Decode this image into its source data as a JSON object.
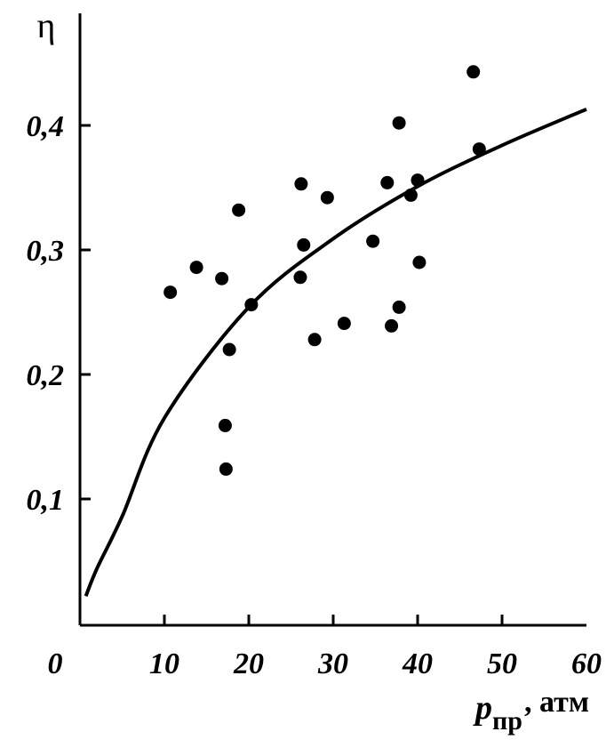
{
  "chart_data": {
    "type": "scatter",
    "y_label": "η",
    "x_label": "p",
    "x_label_sub": "пр",
    "x_label_unit": ", атм",
    "xlim": [
      0,
      60
    ],
    "ylim": [
      0,
      0.49
    ],
    "xticks": [
      0,
      10,
      20,
      30,
      40,
      50,
      60
    ],
    "yticks": [
      {
        "value": 0.1,
        "label": "0,1"
      },
      {
        "value": 0.2,
        "label": "0,2"
      },
      {
        "value": 0.3,
        "label": "0,3"
      },
      {
        "value": 0.4,
        "label": "0,4"
      }
    ],
    "series": [
      {
        "type": "scatter",
        "color": "#000000",
        "x": [
          10.7,
          13.8,
          16.8,
          18.8,
          17.7,
          17.2,
          17.3,
          20.3,
          26.2,
          26.5,
          26.1,
          29.3,
          27.8,
          31.3,
          34.7,
          36.4,
          37.8,
          36.9,
          37.8,
          39.2,
          40.0,
          40.2,
          46.6,
          47.3
        ],
        "values": [
          0.266,
          0.286,
          0.277,
          0.332,
          0.22,
          0.159,
          0.124,
          0.256,
          0.353,
          0.304,
          0.278,
          0.342,
          0.228,
          0.241,
          0.307,
          0.354,
          0.402,
          0.239,
          0.254,
          0.344,
          0.356,
          0.29,
          0.443,
          0.381
        ]
      },
      {
        "type": "line",
        "color": "#000000",
        "x": [
          0.7,
          2,
          5,
          10,
          20,
          30,
          40,
          50,
          60
        ],
        "values": [
          0.022,
          0.044,
          0.086,
          0.165,
          0.254,
          0.309,
          0.351,
          0.384,
          0.413
        ]
      }
    ]
  }
}
